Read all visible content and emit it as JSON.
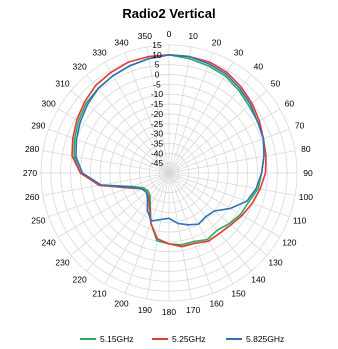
{
  "chart_data": {
    "type": "radar",
    "title": "Radio2 Vertical",
    "angle_labels": [
      "0",
      "10",
      "20",
      "30",
      "40",
      "50",
      "60",
      "70",
      "80",
      "90",
      "100",
      "110",
      "120",
      "130",
      "140",
      "150",
      "160",
      "170",
      "180",
      "190",
      "200",
      "210",
      "220",
      "230",
      "240",
      "250",
      "260",
      "270",
      "280",
      "290",
      "300",
      "310",
      "320",
      "330",
      "340",
      "350"
    ],
    "radial_labels": [
      "15",
      "10",
      "5",
      "0",
      "-5",
      "-10",
      "-15",
      "-20",
      "-25",
      "-30",
      "-35",
      "-40",
      "-45"
    ],
    "rlim": [
      -50,
      15
    ],
    "grid": true,
    "legend_position": "bottom",
    "series": [
      {
        "name": "5.15GHz",
        "color": "#2eaa5e",
        "values": [
          10,
          9,
          8,
          7,
          5,
          3,
          2,
          1,
          -1,
          -3,
          -4,
          -7,
          -8,
          -10,
          -12,
          -11,
          -13,
          -13,
          -14,
          -15,
          -23,
          -31,
          -35,
          -36,
          -35,
          -30,
          -15,
          -5,
          -1,
          1,
          3,
          5,
          6,
          7,
          8,
          9
        ]
      },
      {
        "name": "5.25GHz",
        "color": "#e23a36",
        "values": [
          10,
          10,
          10,
          9,
          7,
          5,
          3,
          1,
          0,
          -1,
          -3,
          -5,
          -7,
          -9,
          -10,
          -10,
          -12,
          -12,
          -14,
          -16,
          -23,
          -30,
          -34,
          -35,
          -34,
          -28,
          -14,
          -5,
          0,
          2,
          4,
          6,
          8,
          9,
          10,
          10
        ]
      },
      {
        "name": "5.825GHz",
        "color": "#2f72b6",
        "values": [
          10,
          10,
          9,
          8,
          6,
          4,
          2,
          1,
          -1,
          -3,
          -5,
          -8,
          -14,
          -20,
          -21,
          -20,
          -22,
          -24,
          -27,
          -26,
          -24,
          -28,
          -33,
          -35,
          -34,
          -29,
          -15,
          -6,
          -2,
          0,
          2,
          4,
          6,
          7,
          8,
          9
        ]
      }
    ]
  }
}
